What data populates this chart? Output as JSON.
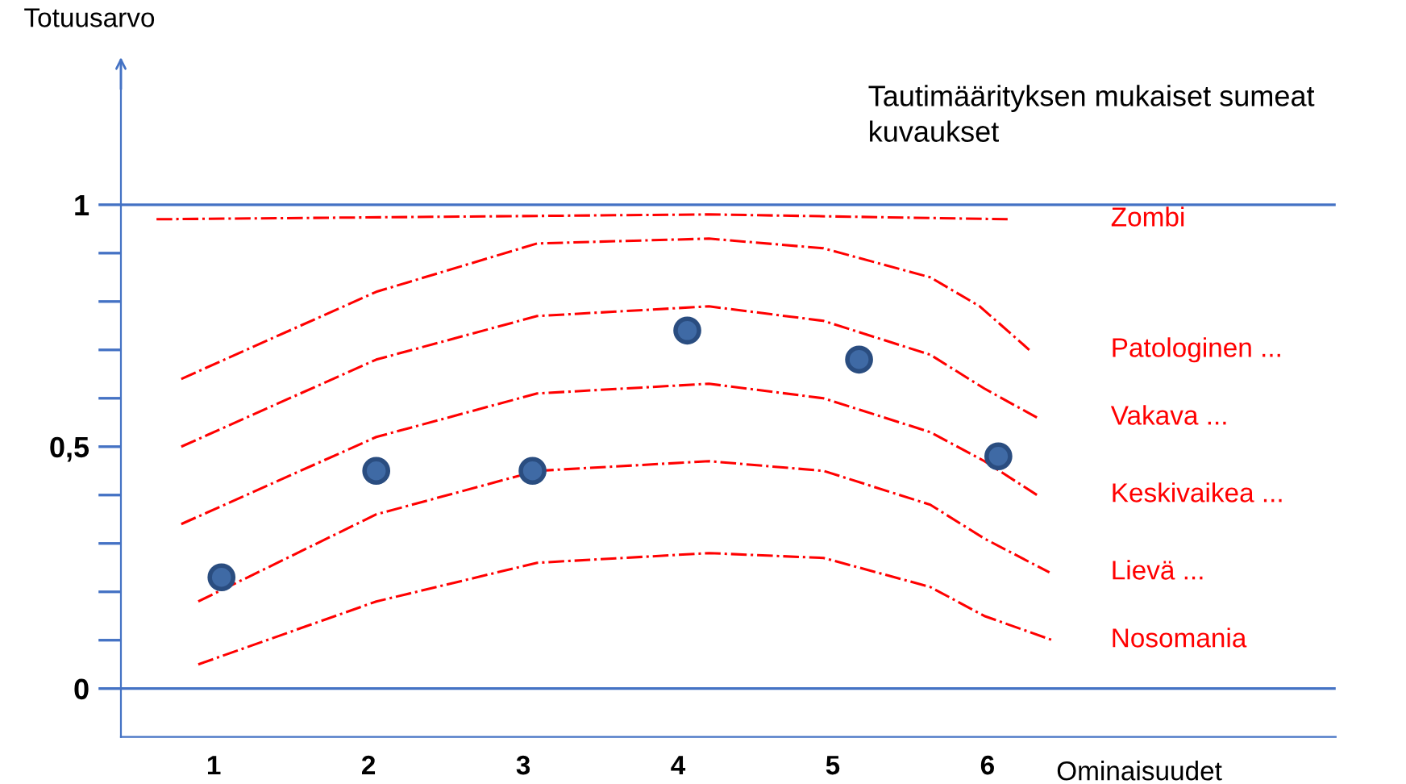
{
  "chart_data": {
    "type": "line",
    "title": "Tautimäärityksen mukaiset sumeat kuvaukset",
    "xlabel": "Ominaisuudet",
    "ylabel": "Totuusarvo",
    "xlim": [
      0.4,
      8.25
    ],
    "xticks": [
      1,
      2,
      3,
      4,
      5,
      6
    ],
    "ylim": [
      -0.1,
      1.3
    ],
    "yticks": [
      {
        "value": 0,
        "label": "0"
      },
      {
        "value": 0.1,
        "label": null
      },
      {
        "value": 0.2,
        "label": null
      },
      {
        "value": 0.3,
        "label": null
      },
      {
        "value": 0.4,
        "label": null
      },
      {
        "value": 0.5,
        "label": "0,5"
      },
      {
        "value": 0.6,
        "label": null
      },
      {
        "value": 0.7,
        "label": null
      },
      {
        "value": 0.8,
        "label": null
      },
      {
        "value": 0.9,
        "label": null
      },
      {
        "value": 1,
        "label": "1"
      }
    ],
    "grid": false,
    "line_style": "dashdot",
    "ref_lines": [
      {
        "axis": "y",
        "value": 1,
        "color": "#4472c4"
      },
      {
        "axis": "y",
        "value": 0,
        "color": "#4472c4"
      }
    ],
    "series": [
      {
        "name": "Zombi",
        "color": "#ff0000",
        "x": [
          0.63,
          4.2,
          6.13
        ],
        "values": [
          0.97,
          0.98,
          0.97
        ]
      },
      {
        "name": "Patologinen ...",
        "color": "#ff0000",
        "x": [
          0.79,
          2.05,
          3.09,
          4.2,
          4.94,
          5.63,
          5.95,
          6.27
        ],
        "values": [
          0.64,
          0.82,
          0.92,
          0.93,
          0.91,
          0.85,
          0.79,
          0.7
        ]
      },
      {
        "name": "Vakava ...",
        "color": "#ff0000",
        "x": [
          0.79,
          2.05,
          3.09,
          4.2,
          4.94,
          5.63,
          5.98,
          6.32
        ],
        "values": [
          0.5,
          0.68,
          0.77,
          0.79,
          0.76,
          0.69,
          0.62,
          0.56
        ]
      },
      {
        "name": "Keskivaikea ...",
        "color": "#ff0000",
        "x": [
          0.79,
          2.05,
          3.09,
          4.2,
          4.94,
          5.63,
          5.98,
          6.32
        ],
        "values": [
          0.34,
          0.52,
          0.61,
          0.63,
          0.6,
          0.53,
          0.47,
          0.4
        ]
      },
      {
        "name": "Lievä ...",
        "color": "#ff0000",
        "x": [
          0.9,
          2.05,
          3.09,
          4.2,
          4.94,
          5.63,
          5.98,
          6.4
        ],
        "values": [
          0.18,
          0.36,
          0.45,
          0.47,
          0.45,
          0.38,
          0.31,
          0.24
        ]
      },
      {
        "name": "Nosomania",
        "color": "#ff0000",
        "x": [
          0.9,
          2.05,
          3.09,
          4.2,
          4.94,
          5.63,
          5.98,
          6.42
        ],
        "values": [
          0.05,
          0.18,
          0.26,
          0.28,
          0.27,
          0.21,
          0.15,
          0.1
        ]
      },
      {
        "type": "scatter",
        "color": "#3f6aa5",
        "marker": "circle",
        "x": [
          1.05,
          2.05,
          3.06,
          4.06,
          5.17,
          6.07
        ],
        "values": [
          0.23,
          0.45,
          0.45,
          0.74,
          0.68,
          0.48
        ]
      }
    ]
  }
}
